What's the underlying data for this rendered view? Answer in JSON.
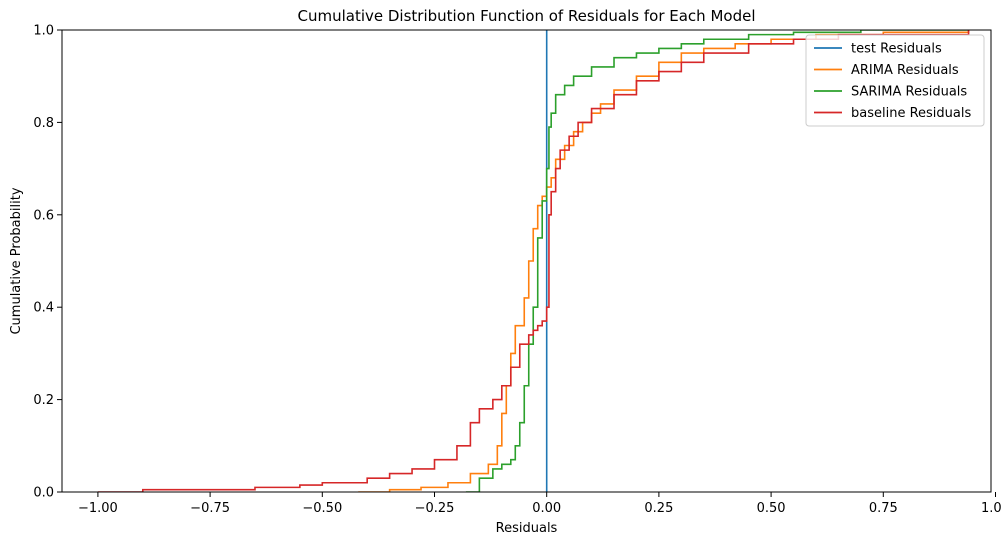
{
  "chart_data": {
    "type": "line",
    "step": true,
    "title": "Cumulative Distribution Function of Residuals for Each Model",
    "xlabel": "Residuals",
    "ylabel": "Cumulative Probability",
    "xlim": [
      -1.08,
      0.99
    ],
    "ylim": [
      0,
      1
    ],
    "xticks": [
      -1.0,
      -0.75,
      -0.5,
      -0.25,
      0.0,
      0.25,
      0.5,
      0.75,
      1.0
    ],
    "xtick_labels": [
      "−1.00",
      "−0.75",
      "−0.50",
      "−0.25",
      "0.00",
      "0.25",
      "0.50",
      "0.75",
      "1.00"
    ],
    "yticks": [
      0.0,
      0.2,
      0.4,
      0.6,
      0.8,
      1.0
    ],
    "ytick_labels": [
      "0.0",
      "0.2",
      "0.4",
      "0.6",
      "0.8",
      "1.0"
    ],
    "grid": false,
    "legend_position": "top-right",
    "series": [
      {
        "name": "test Residuals",
        "color": "#1f77b4",
        "x": [
          0.0,
          0.0
        ],
        "y": [
          0.0,
          1.0
        ]
      },
      {
        "name": "ARIMA Residuals",
        "color": "#ff7f0e",
        "x": [
          -0.42,
          -0.35,
          -0.28,
          -0.22,
          -0.17,
          -0.13,
          -0.11,
          -0.1,
          -0.09,
          -0.08,
          -0.07,
          -0.05,
          -0.04,
          -0.03,
          -0.02,
          -0.01,
          0.0,
          0.01,
          0.02,
          0.04,
          0.06,
          0.08,
          0.1,
          0.12,
          0.15,
          0.2,
          0.25,
          0.3,
          0.35,
          0.42,
          0.5,
          0.6,
          0.75,
          0.94
        ],
        "y": [
          0.0,
          0.005,
          0.01,
          0.02,
          0.04,
          0.06,
          0.1,
          0.17,
          0.23,
          0.3,
          0.36,
          0.42,
          0.5,
          0.57,
          0.62,
          0.64,
          0.66,
          0.68,
          0.72,
          0.75,
          0.78,
          0.8,
          0.82,
          0.84,
          0.87,
          0.9,
          0.93,
          0.95,
          0.96,
          0.97,
          0.98,
          0.99,
          0.995,
          1.0
        ]
      },
      {
        "name": "SARIMA Residuals",
        "color": "#2ca02c",
        "x": [
          -0.18,
          -0.15,
          -0.12,
          -0.1,
          -0.08,
          -0.07,
          -0.06,
          -0.05,
          -0.04,
          -0.03,
          -0.02,
          -0.01,
          0.0,
          0.005,
          0.01,
          0.02,
          0.04,
          0.06,
          0.1,
          0.15,
          0.2,
          0.25,
          0.3,
          0.35,
          0.45,
          0.55,
          0.7,
          0.94
        ],
        "y": [
          0.0,
          0.03,
          0.05,
          0.06,
          0.07,
          0.1,
          0.15,
          0.23,
          0.32,
          0.4,
          0.55,
          0.63,
          0.7,
          0.79,
          0.82,
          0.86,
          0.88,
          0.9,
          0.92,
          0.94,
          0.95,
          0.96,
          0.97,
          0.98,
          0.99,
          0.995,
          1.0,
          1.0
        ]
      },
      {
        "name": "baseline Residuals",
        "color": "#d62728",
        "x": [
          -1.0,
          -0.9,
          -0.65,
          -0.55,
          -0.5,
          -0.4,
          -0.35,
          -0.3,
          -0.25,
          -0.2,
          -0.17,
          -0.15,
          -0.12,
          -0.1,
          -0.08,
          -0.06,
          -0.04,
          -0.03,
          -0.02,
          -0.01,
          0.0,
          0.005,
          0.01,
          0.02,
          0.03,
          0.05,
          0.07,
          0.1,
          0.15,
          0.2,
          0.25,
          0.3,
          0.35,
          0.45,
          0.55,
          0.65,
          0.94
        ],
        "y": [
          0.0,
          0.005,
          0.01,
          0.015,
          0.02,
          0.03,
          0.04,
          0.05,
          0.07,
          0.1,
          0.15,
          0.18,
          0.2,
          0.23,
          0.27,
          0.32,
          0.34,
          0.35,
          0.36,
          0.37,
          0.4,
          0.6,
          0.65,
          0.7,
          0.74,
          0.77,
          0.8,
          0.83,
          0.86,
          0.89,
          0.91,
          0.93,
          0.95,
          0.97,
          0.98,
          0.99,
          1.0
        ]
      }
    ]
  }
}
